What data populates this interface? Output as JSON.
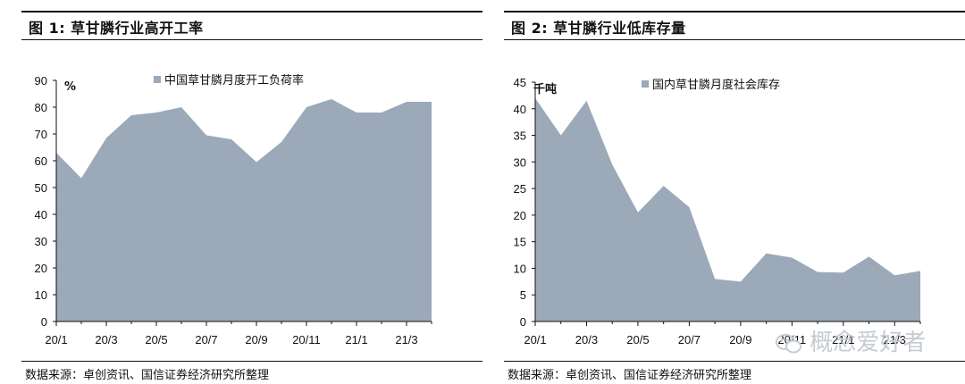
{
  "figures": [
    {
      "title": "图 1:  草甘膦行业高开工率",
      "source": "数据来源：卓创资讯、国信证券经济研究所整理",
      "unit_label": "%"
    },
    {
      "title": "图 2:  草甘膦行业低库存量",
      "source": "数据来源：卓创资讯、国信证券经济研究所整理",
      "unit_label": "千吨"
    }
  ],
  "watermark": "概念爱好者",
  "chart_data": [
    {
      "type": "area",
      "title": "图 1:  草甘膦行业高开工率",
      "xlabel": "",
      "ylabel": "%",
      "ylim": [
        0,
        90
      ],
      "yticks": [
        "0",
        "10",
        "20",
        "30",
        "40",
        "50",
        "60",
        "70",
        "80",
        "90"
      ],
      "xtick_labels": [
        "20/1",
        "20/3",
        "20/5",
        "20/7",
        "20/9",
        "20/11",
        "21/1",
        "21/3"
      ],
      "x": [
        "20/1",
        "20/2",
        "20/3",
        "20/4",
        "20/5",
        "20/6",
        "20/7",
        "20/8",
        "20/9",
        "20/10",
        "20/11",
        "20/12",
        "21/1",
        "21/2",
        "21/3",
        "21/4"
      ],
      "series": [
        {
          "name": "中国草甘膦月度开工负荷率",
          "values": [
            63,
            53.5,
            68.5,
            77,
            78,
            80,
            69.5,
            68,
            59.5,
            67,
            80,
            83,
            78,
            78,
            82,
            82
          ]
        }
      ],
      "color": "#9ba9b8",
      "legend": "top-right",
      "grid": false
    },
    {
      "type": "area",
      "title": "图 2:  草甘膦行业低库存量",
      "xlabel": "",
      "ylabel": "千吨",
      "ylim": [
        0,
        45
      ],
      "yticks": [
        "0",
        "5",
        "10",
        "15",
        "20",
        "25",
        "30",
        "35",
        "40",
        "45"
      ],
      "xtick_labels": [
        "20/1",
        "20/3",
        "20/5",
        "20/7",
        "20/9",
        "20/11",
        "21/1",
        "21/3"
      ],
      "x": [
        "20/1",
        "20/2",
        "20/3",
        "20/4",
        "20/5",
        "20/6",
        "20/7",
        "20/8",
        "20/9",
        "20/10",
        "20/11",
        "20/12",
        "21/1",
        "21/2",
        "21/3",
        "21/4"
      ],
      "series": [
        {
          "name": "国内草甘膦月度社会库存",
          "values": [
            42,
            35,
            41.5,
            29.5,
            20.5,
            25.5,
            21.5,
            8,
            7.5,
            12.8,
            12,
            9.3,
            9.2,
            12.2,
            8.7,
            9.5
          ]
        }
      ],
      "color": "#9ba9b8",
      "legend": "top-right",
      "grid": false
    }
  ]
}
